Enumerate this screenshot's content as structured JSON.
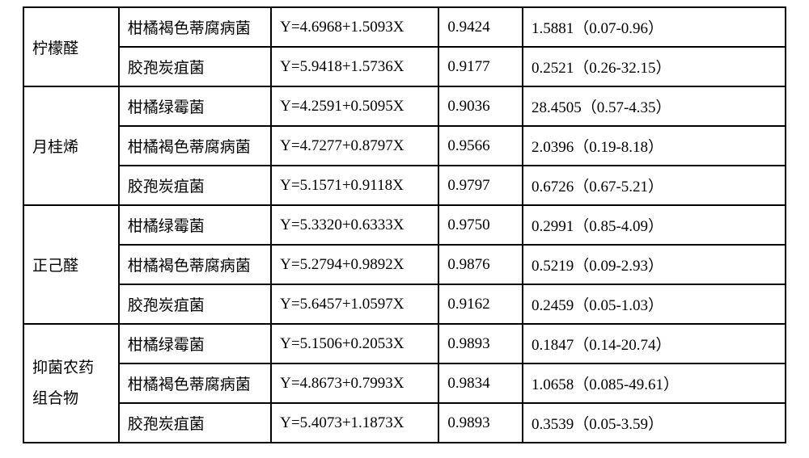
{
  "table": {
    "border_color": "#000000",
    "background_color": "#ffffff",
    "text_color": "#000000",
    "font_size_pt": 14,
    "column_widths_pct": [
      12.5,
      20,
      22,
      11,
      34.5
    ],
    "groups": [
      {
        "compound": "柠檬醛",
        "rows": [
          {
            "strain": "柑橘褐色蒂腐病菌",
            "equation": "Y=4.6968+1.5093X",
            "r": "0.9424",
            "ec": "1.5881（0.07-0.96）"
          },
          {
            "strain": "胶孢炭疽菌",
            "equation": "Y=5.9418+1.5736X",
            "r": "0.9177",
            "ec": "0.2521（0.26-32.15）"
          }
        ]
      },
      {
        "compound": "月桂烯",
        "rows": [
          {
            "strain": "柑橘绿霉菌",
            "equation": "Y=4.2591+0.5095X",
            "r": "0.9036",
            "ec": "28.4505（0.57-4.35）"
          },
          {
            "strain": "柑橘褐色蒂腐病菌",
            "equation": "Y=4.7277+0.8797X",
            "r": "0.9566",
            "ec": "2.0396（0.19-8.18）"
          },
          {
            "strain": "胶孢炭疽菌",
            "equation": "Y=5.1571+0.9118X",
            "r": "0.9797",
            "ec": "0.6726（0.67-5.21）"
          }
        ]
      },
      {
        "compound": "正己醛",
        "rows": [
          {
            "strain": "柑橘绿霉菌",
            "equation": "Y=5.3320+0.6333X",
            "r": "0.9750",
            "ec": "0.2991（0.85-4.09）"
          },
          {
            "strain": "柑橘褐色蒂腐病菌",
            "equation": "Y=5.2794+0.9892X",
            "r": "0.9876",
            "ec": "0.5219（0.09-2.93）"
          },
          {
            "strain": "胶孢炭疽菌",
            "equation": "Y=5.6457+1.0597X",
            "r": "0.9162",
            "ec": "0.2459（0.05-1.03）"
          }
        ]
      },
      {
        "compound_line1": "抑菌农药",
        "compound_line2": "组合物",
        "rows": [
          {
            "strain": "柑橘绿霉菌",
            "equation": "Y=5.1506+0.2053X",
            "r": "0.9893",
            "ec": "0.1847（0.14-20.74）"
          },
          {
            "strain": "柑橘褐色蒂腐病菌",
            "equation": "Y=4.8673+0.7993X",
            "r": "0.9834",
            "ec": "1.0658（0.085-49.61）"
          },
          {
            "strain": "胶孢炭疽菌",
            "equation": "Y=5.4073+1.1873X",
            "r": "0.9893",
            "ec": "0.3539（0.05-3.59）"
          }
        ]
      }
    ]
  }
}
